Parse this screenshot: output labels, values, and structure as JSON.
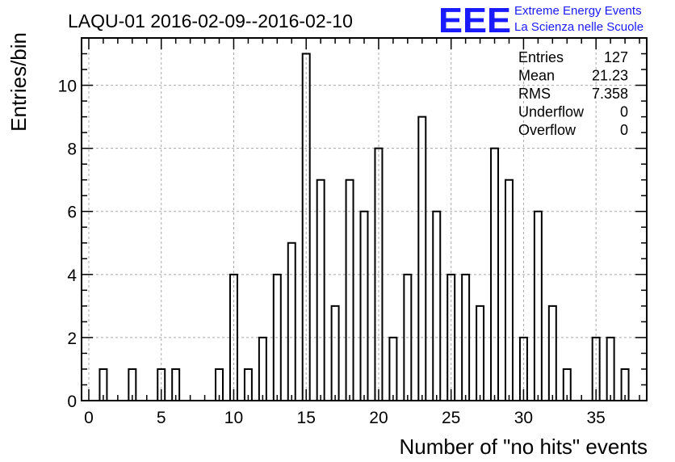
{
  "chart_data": {
    "type": "bar",
    "title": "LAQU-01 2016-02-09--2016-02-10",
    "xlabel": "Number of \"no hits\" events",
    "ylabel": "Entries/bin",
    "xlim": [
      -0.5,
      38.5
    ],
    "ylim": [
      0,
      11.5
    ],
    "bin_width": 0.5,
    "grid": true,
    "x_ticks": [
      0,
      5,
      10,
      15,
      20,
      25,
      30,
      35
    ],
    "y_ticks": [
      0,
      2,
      4,
      6,
      8,
      10
    ],
    "bins": [
      {
        "x": 1,
        "value": 1
      },
      {
        "x": 3,
        "value": 1
      },
      {
        "x": 5,
        "value": 1
      },
      {
        "x": 6,
        "value": 1
      },
      {
        "x": 9,
        "value": 1
      },
      {
        "x": 10,
        "value": 4
      },
      {
        "x": 11,
        "value": 1
      },
      {
        "x": 12,
        "value": 2
      },
      {
        "x": 13,
        "value": 4
      },
      {
        "x": 14,
        "value": 5
      },
      {
        "x": 15,
        "value": 11
      },
      {
        "x": 16,
        "value": 7
      },
      {
        "x": 17,
        "value": 3
      },
      {
        "x": 18,
        "value": 7
      },
      {
        "x": 19,
        "value": 6
      },
      {
        "x": 20,
        "value": 8
      },
      {
        "x": 21,
        "value": 2
      },
      {
        "x": 22,
        "value": 4
      },
      {
        "x": 23,
        "value": 9
      },
      {
        "x": 24,
        "value": 6
      },
      {
        "x": 25,
        "value": 4
      },
      {
        "x": 26,
        "value": 4
      },
      {
        "x": 27,
        "value": 3
      },
      {
        "x": 28,
        "value": 8
      },
      {
        "x": 29,
        "value": 7
      },
      {
        "x": 30,
        "value": 2
      },
      {
        "x": 31,
        "value": 6
      },
      {
        "x": 32,
        "value": 3
      },
      {
        "x": 33,
        "value": 1
      },
      {
        "x": 35,
        "value": 2
      },
      {
        "x": 36,
        "value": 2
      },
      {
        "x": 37,
        "value": 1
      }
    ],
    "stats": [
      {
        "label": "Entries",
        "value": "127"
      },
      {
        "label": "Mean",
        "value": "21.23"
      },
      {
        "label": "RMS",
        "value": "7.358"
      },
      {
        "label": "Underflow",
        "value": "0"
      },
      {
        "label": "Overflow",
        "value": "0"
      }
    ]
  },
  "logo": {
    "text": "EEE",
    "line1": "Extreme Energy Events",
    "line2": "La Scienza nelle Scuole",
    "color": "#1a1aff"
  }
}
